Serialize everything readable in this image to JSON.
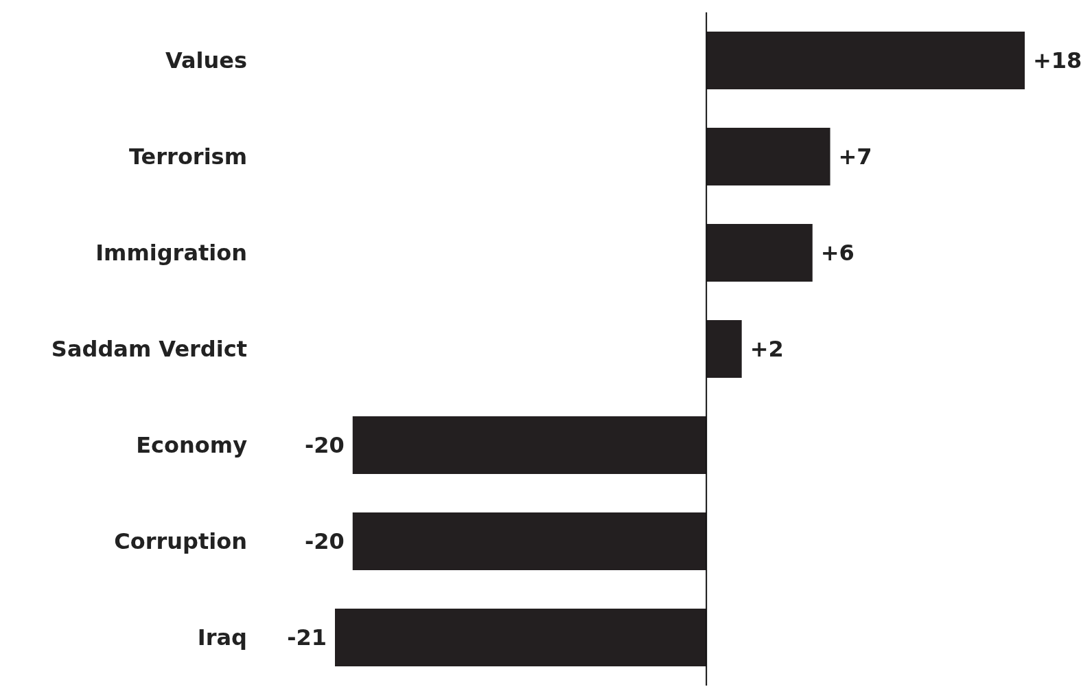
{
  "chart_data": {
    "type": "bar",
    "orientation": "horizontal",
    "categories": [
      "Values",
      "Terrorism",
      "Immigration",
      "Saddam Verdict",
      "Economy",
      "Corruption",
      "Iraq"
    ],
    "values": [
      18,
      7,
      6,
      2,
      -20,
      -20,
      -21
    ],
    "value_labels": [
      "+18",
      "+7",
      "+6",
      "+2",
      "-20",
      "-20",
      "-21"
    ],
    "color": "#231f20",
    "grid": false,
    "legend": false
  }
}
